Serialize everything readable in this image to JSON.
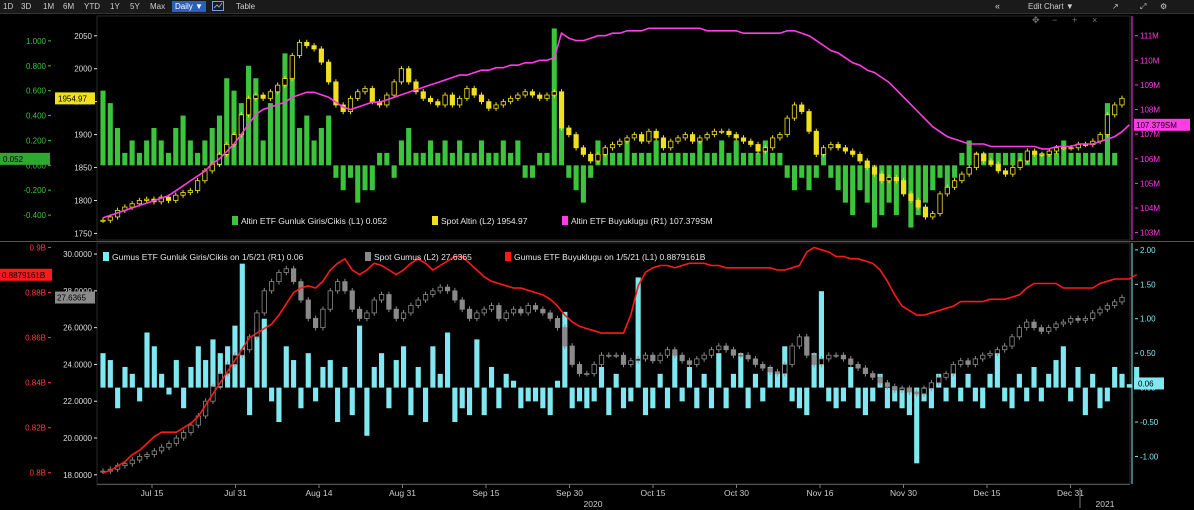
{
  "toolbar": {
    "ranges": [
      "1D",
      "3D",
      "1M",
      "6M",
      "YTD",
      "1Y",
      "5Y",
      "Max"
    ],
    "interval": "Daily",
    "table_label": "Table",
    "edit_chart_label": "Edit Chart"
  },
  "colors": {
    "gold_flow": "#3cc43c",
    "gold_price": "#f0e020",
    "gold_size": "#ff3ce6",
    "silver_flow": "#7fe8f0",
    "silver_price": "#8a8a8a",
    "silver_size": "#ff1a1a"
  },
  "x_axis": {
    "labels": [
      "Jul 15",
      "Jul 31",
      "Aug 14",
      "Aug 31",
      "Sep 15",
      "Sep 30",
      "Oct 15",
      "Oct 30",
      "Nov 16",
      "Nov 30",
      "Dec 15",
      "Dec 31"
    ],
    "year_labels": [
      "2020",
      "2021"
    ]
  },
  "chart_data": [
    {
      "type": "bar",
      "panel": "top",
      "x_start": "2020-07-01",
      "x_end": "2021-01-05",
      "left_axis_flow": {
        "ticks": [
          "1.000",
          "0.800",
          "0.600",
          "0.400",
          "0.200",
          "0.000",
          "-0.200",
          "-0.400"
        ],
        "range": [
          -0.6,
          1.2
        ]
      },
      "left_axis_price": {
        "ticks": [
          "2050",
          "2000",
          "1950",
          "1900",
          "1850",
          "1800",
          "1750"
        ],
        "range": [
          1740,
          2080
        ]
      },
      "right_axis": {
        "ticks": [
          "111M",
          "110M",
          "109M",
          "108M",
          "107M",
          "106M",
          "105M",
          "104M",
          "103M"
        ],
        "range": [
          102.7,
          111.8
        ]
      },
      "legend": [
        {
          "label": "Altin ETF Gunluk Giris/Cikis (L1) 0.052",
          "color": "#3cc43c"
        },
        {
          "label": "Spot Altin (L2) 1954.97",
          "color": "#f0e020"
        },
        {
          "label": "Altin ETF Buyuklugu (R1) 107.379SM",
          "color": "#ff3ce6"
        }
      ],
      "last_value_tags": {
        "flow": "0.052",
        "price": "1954.97",
        "size": "107.379SM"
      },
      "series": [
        {
          "name": "Altin ETF Gunluk Giris/Cikis (L1)",
          "kind": "bar",
          "color": "#3cc43c",
          "values": [
            0.6,
            0.5,
            0.3,
            0.1,
            0.2,
            0.1,
            0.2,
            0.3,
            0.2,
            0.1,
            0.3,
            0.4,
            0.2,
            0.1,
            0.2,
            0.3,
            0.4,
            0.7,
            0.6,
            0.5,
            0.8,
            0.7,
            0.2,
            0.5,
            0.6,
            0.9,
            0.7,
            0.3,
            0.4,
            0.2,
            0.3,
            0.4,
            -0.1,
            -0.2,
            -0.1,
            -0.3,
            -0.2,
            -0.2,
            0.1,
            0.1,
            -0.1,
            0.2,
            0.3,
            0.1,
            0.1,
            0.2,
            0.1,
            0.2,
            0.1,
            0.2,
            0.1,
            0.1,
            0.2,
            0.1,
            0.1,
            0.2,
            0.1,
            0.2,
            -0.1,
            -0.1,
            0.1,
            0.1,
            1.1,
            0.3,
            -0.1,
            -0.2,
            -0.3,
            -0.1,
            0.2,
            0.1,
            0.1,
            0.1,
            0.2,
            0.1,
            0.1,
            0.1,
            0.2,
            0.1,
            0.1,
            0.1,
            0.1,
            0.1,
            0.2,
            0.1,
            0.1,
            0.2,
            0.1,
            0.2,
            0.1,
            0.1,
            0.1,
            0.2,
            0.1,
            0.1,
            -0.1,
            -0.2,
            -0.1,
            -0.2,
            -0.1,
            0.1,
            -0.1,
            -0.2,
            -0.3,
            -0.4,
            -0.2,
            -0.3,
            -0.5,
            -0.4,
            -0.3,
            -0.4,
            -0.2,
            -0.5,
            -0.4,
            -0.3,
            -0.2,
            -0.1,
            -0.2,
            -0.1,
            0.1,
            0.2,
            0.1,
            0.1,
            0.1,
            0.1,
            0.1,
            0.1,
            0.1,
            0.1,
            0.1,
            0.1,
            0.1,
            0.1,
            0.2,
            0.1,
            0.1,
            0.1,
            0.1,
            0.1,
            0.5,
            0.1
          ]
        },
        {
          "name": "Spot Altin (L2)",
          "kind": "candlestick",
          "color": "#f0e020",
          "close": [
            1770,
            1775,
            1785,
            1790,
            1795,
            1800,
            1802,
            1798,
            1805,
            1800,
            1808,
            1812,
            1815,
            1830,
            1845,
            1855,
            1870,
            1885,
            1900,
            1930,
            1955,
            1960,
            1955,
            1965,
            1975,
            1985,
            2020,
            2040,
            2035,
            2030,
            2010,
            1980,
            1945,
            1935,
            1955,
            1965,
            1970,
            1950,
            1945,
            1960,
            1980,
            2000,
            1980,
            1965,
            1955,
            1950,
            1945,
            1960,
            1945,
            1955,
            1970,
            1960,
            1950,
            1940,
            1945,
            1950,
            1955,
            1960,
            1965,
            1960,
            1955,
            1960,
            1965,
            1910,
            1900,
            1880,
            1870,
            1860,
            1870,
            1880,
            1885,
            1890,
            1895,
            1900,
            1890,
            1905,
            1895,
            1880,
            1890,
            1895,
            1900,
            1890,
            1895,
            1900,
            1905,
            1905,
            1900,
            1895,
            1890,
            1885,
            1875,
            1880,
            1895,
            1900,
            1925,
            1945,
            1935,
            1905,
            1870,
            1880,
            1885,
            1880,
            1875,
            1870,
            1860,
            1850,
            1840,
            1830,
            1835,
            1830,
            1810,
            1800,
            1790,
            1775,
            1780,
            1810,
            1820,
            1830,
            1840,
            1850,
            1870,
            1860,
            1855,
            1845,
            1840,
            1850,
            1860,
            1875,
            1870,
            1870,
            1875,
            1880,
            1880,
            1880,
            1885,
            1885,
            1890,
            1900,
            1930,
            1945,
            1955
          ]
        },
        {
          "name": "Altin ETF Buyuklugu (R1)",
          "kind": "line",
          "color": "#ff3ce6",
          "values": [
            103.6,
            103.7,
            103.8,
            103.9,
            104,
            104.1,
            104.2,
            104.3,
            104.4,
            104.5,
            104.7,
            104.9,
            105.1,
            105.3,
            105.5,
            105.8,
            106,
            106.3,
            106.6,
            107,
            107.4,
            107.8,
            108,
            108.1,
            108.2,
            108.3,
            108.5,
            108.6,
            108.7,
            108.7,
            108.6,
            108.5,
            108.3,
            108.1,
            108,
            108.1,
            108.2,
            108.3,
            108.3,
            108.4,
            108.5,
            108.6,
            108.7,
            108.8,
            108.9,
            109,
            109.1,
            109.2,
            109.3,
            109.4,
            109.4,
            109.5,
            109.6,
            109.6,
            109.7,
            109.7,
            109.8,
            109.8,
            109.9,
            109.9,
            110,
            110,
            110.1,
            111.1,
            110.9,
            110.8,
            110.8,
            110.9,
            111,
            111,
            111.1,
            111.1,
            111.2,
            111.2,
            111.2,
            111.3,
            111.3,
            111.3,
            111.3,
            111.3,
            111.3,
            111.3,
            111.3,
            111.2,
            111.2,
            111.2,
            111.2,
            111.2,
            111.1,
            111.1,
            111.1,
            111.1,
            111.1,
            111.1,
            111.2,
            111.2,
            111.1,
            111,
            110.8,
            110.6,
            110.4,
            110.3,
            110.1,
            109.9,
            109.8,
            109.6,
            109.5,
            109.3,
            109.1,
            108.8,
            108.5,
            108.2,
            107.9,
            107.6,
            107.3,
            107.1,
            106.9,
            106.8,
            106.7,
            106.6,
            106.6,
            106.6,
            106.5,
            106.5,
            106.5,
            106.5,
            106.5,
            106.5,
            106.5,
            106.4,
            106.4,
            106.5,
            106.5,
            106.5,
            106.6,
            106.6,
            106.6,
            106.7,
            106.8,
            106.9,
            107.1,
            107.38
          ]
        }
      ]
    },
    {
      "type": "bar",
      "panel": "bottom",
      "x_start": "2020-07-01",
      "x_end": "2021-01-05",
      "left_axis_size": {
        "ticks": [
          "0.9B",
          "0.88B",
          "0.86B",
          "0.84B",
          "0.82B",
          "0.8B"
        ],
        "range": [
          0.795,
          0.902
        ]
      },
      "left_axis_price": {
        "ticks": [
          "30.0000",
          "28.0000",
          "26.0000",
          "24.0000",
          "22.0000",
          "20.0000",
          "18.0000"
        ],
        "range": [
          17.5,
          30.6
        ]
      },
      "right_axis": {
        "ticks": [
          "2.00",
          "1.50",
          "1.00",
          "0.50",
          "0.00",
          "-0.50",
          "-1.00"
        ],
        "range": [
          -1.4,
          2.1
        ]
      },
      "legend": [
        {
          "label": "Gumus ETF Gunluk Giris/Cikis on 1/5/21 (R1) 0.06",
          "color": "#7fe8f0"
        },
        {
          "label": "Spot Gumus (L2) 27.6365",
          "color": "#8a8a8a"
        },
        {
          "label": "Gumus ETF Buyuklugu on 1/5/21 (L1) 0.8879161B",
          "color": "#ff1a1a"
        }
      ],
      "last_value_tags": {
        "size": "0.8879161B",
        "price": "27.6365",
        "flow": "0.06"
      },
      "series": [
        {
          "name": "Gumus ETF Gunluk Giris/Cikis on 1/5/21 (R1)",
          "kind": "bar",
          "color": "#7fe8f0",
          "values": [
            0.5,
            0.4,
            -0.3,
            0.3,
            0.2,
            -0.2,
            0.8,
            0.6,
            0.2,
            -0.1,
            0.4,
            -0.3,
            0.3,
            0.6,
            0.4,
            0.7,
            0.5,
            0.6,
            0.9,
            1.8,
            -0.4,
            0.9,
            1.0,
            -0.2,
            -0.5,
            0.6,
            0.4,
            -0.3,
            0.5,
            -0.2,
            0.3,
            0.4,
            -0.5,
            0.3,
            -0.4,
            0.9,
            -0.7,
            0.3,
            0.5,
            -0.3,
            0.4,
            0.6,
            -0.4,
            0.3,
            -0.5,
            0.6,
            0.2,
            0.8,
            -0.5,
            -0.3,
            -0.4,
            0.7,
            -0.4,
            0.3,
            -0.3,
            0.2,
            0.1,
            -0.3,
            -0.2,
            -0.2,
            -0.3,
            -0.4,
            0.1,
            1.1,
            -0.3,
            -0.2,
            -0.3,
            -0.2,
            0.3,
            -0.4,
            0.2,
            -0.3,
            -0.2,
            1.6,
            -0.4,
            -0.3,
            0.2,
            -0.3,
            0.5,
            -0.2,
            0.3,
            -0.3,
            0.2,
            -0.3,
            0.5,
            -0.3,
            0.2,
            0.5,
            -0.3,
            0.2,
            -0.2,
            0.3,
            0.2,
            0.6,
            -0.2,
            -0.3,
            -0.4,
            0.5,
            1.4,
            -0.2,
            -0.3,
            -0.2,
            0.3,
            -0.3,
            -0.4,
            -0.2,
            0.2,
            -0.3,
            -0.2,
            -0.3,
            -0.4,
            -1.1,
            -0.2,
            -0.3,
            0.2,
            -0.2,
            0.3,
            -0.2,
            0.2,
            -0.2,
            -0.3,
            0.2,
            0.5,
            -0.2,
            -0.3,
            0.2,
            -0.2,
            0.3,
            -0.2,
            0.2,
            0.4,
            0.6,
            -0.2,
            0.3,
            -0.4,
            0.2,
            -0.3,
            -0.2,
            0.3,
            0.2,
            0.05,
            0.3,
            0.1,
            0.06
          ]
        },
        {
          "name": "Spot Gumus (L2)",
          "kind": "candlestick",
          "color": "#8a8a8a",
          "close": [
            18.2,
            18.3,
            18.5,
            18.6,
            18.8,
            19.0,
            19.1,
            19.3,
            19.5,
            19.7,
            20.0,
            20.3,
            20.7,
            21.2,
            22.0,
            22.8,
            23.5,
            24.0,
            24.5,
            24.8,
            25.5,
            26.8,
            28.0,
            28.5,
            29.0,
            29.2,
            28.5,
            27.5,
            26.5,
            26.0,
            27.0,
            28.0,
            28.5,
            28.0,
            27.0,
            26.5,
            26.8,
            27.5,
            27.8,
            27.0,
            26.5,
            26.8,
            27.2,
            27.5,
            27.8,
            28.0,
            28.2,
            28.0,
            27.5,
            27.0,
            26.5,
            26.8,
            27.0,
            27.2,
            26.5,
            26.8,
            27.0,
            26.8,
            27.2,
            27.0,
            26.8,
            26.5,
            26.0,
            25.0,
            24.0,
            23.5,
            23.5,
            24.0,
            24.5,
            24.5,
            24.5,
            24.0,
            24.2,
            24.3,
            24.5,
            24.2,
            24.5,
            24.8,
            24.5,
            24.2,
            24.0,
            24.3,
            24.5,
            24.8,
            25.0,
            24.8,
            24.5,
            24.5,
            24.3,
            24.0,
            23.8,
            23.6,
            23.5,
            24.0,
            25.0,
            25.5,
            24.5,
            24.0,
            24.3,
            24.5,
            24.5,
            24.3,
            24.0,
            23.8,
            23.5,
            23.3,
            23.0,
            22.8,
            22.6,
            22.7,
            22.5,
            22.4,
            22.7,
            23.0,
            23.3,
            23.5,
            24.0,
            24.2,
            24.0,
            24.3,
            24.5,
            24.6,
            24.8,
            25.0,
            25.5,
            26.0,
            26.3,
            26.0,
            25.8,
            26.0,
            26.2,
            26.3,
            26.5,
            26.4,
            26.5,
            26.8,
            27.0,
            27.2,
            27.4,
            27.64
          ]
        },
        {
          "name": "Gumus ETF Buyuklugu on 1/5/21 (L1)",
          "kind": "line",
          "color": "#ff1a1a",
          "values": [
            0.8,
            0.801,
            0.803,
            0.805,
            0.808,
            0.81,
            0.813,
            0.816,
            0.818,
            0.818,
            0.818,
            0.82,
            0.822,
            0.825,
            0.83,
            0.835,
            0.84,
            0.845,
            0.85,
            0.855,
            0.86,
            0.862,
            0.864,
            0.866,
            0.87,
            0.875,
            0.88,
            0.882,
            0.883,
            0.882,
            0.885,
            0.89,
            0.893,
            0.895,
            0.89,
            0.888,
            0.89,
            0.893,
            0.892,
            0.89,
            0.888,
            0.89,
            0.893,
            0.895,
            0.893,
            0.89,
            0.892,
            0.894,
            0.896,
            0.896,
            0.893,
            0.89,
            0.887,
            0.885,
            0.884,
            0.883,
            0.882,
            0.882,
            0.881,
            0.88,
            0.879,
            0.877,
            0.874,
            0.87,
            0.867,
            0.865,
            0.864,
            0.863,
            0.862,
            0.862,
            0.862,
            0.862,
            0.87,
            0.883,
            0.889,
            0.891,
            0.892,
            0.892,
            0.891,
            0.892,
            0.893,
            0.893,
            0.893,
            0.892,
            0.892,
            0.891,
            0.891,
            0.891,
            0.891,
            0.891,
            0.891,
            0.891,
            0.89,
            0.89,
            0.891,
            0.892,
            0.898,
            0.9,
            0.899,
            0.898,
            0.896,
            0.896,
            0.895,
            0.895,
            0.894,
            0.893,
            0.89,
            0.885,
            0.879,
            0.874,
            0.872,
            0.87,
            0.87,
            0.871,
            0.872,
            0.873,
            0.874,
            0.876,
            0.876,
            0.876,
            0.876,
            0.877,
            0.877,
            0.877,
            0.878,
            0.879,
            0.882,
            0.884,
            0.884,
            0.884,
            0.884,
            0.882,
            0.882,
            0.882,
            0.882,
            0.882,
            0.884,
            0.885,
            0.886,
            0.886,
            0.886,
            0.888
          ]
        }
      ]
    }
  ]
}
